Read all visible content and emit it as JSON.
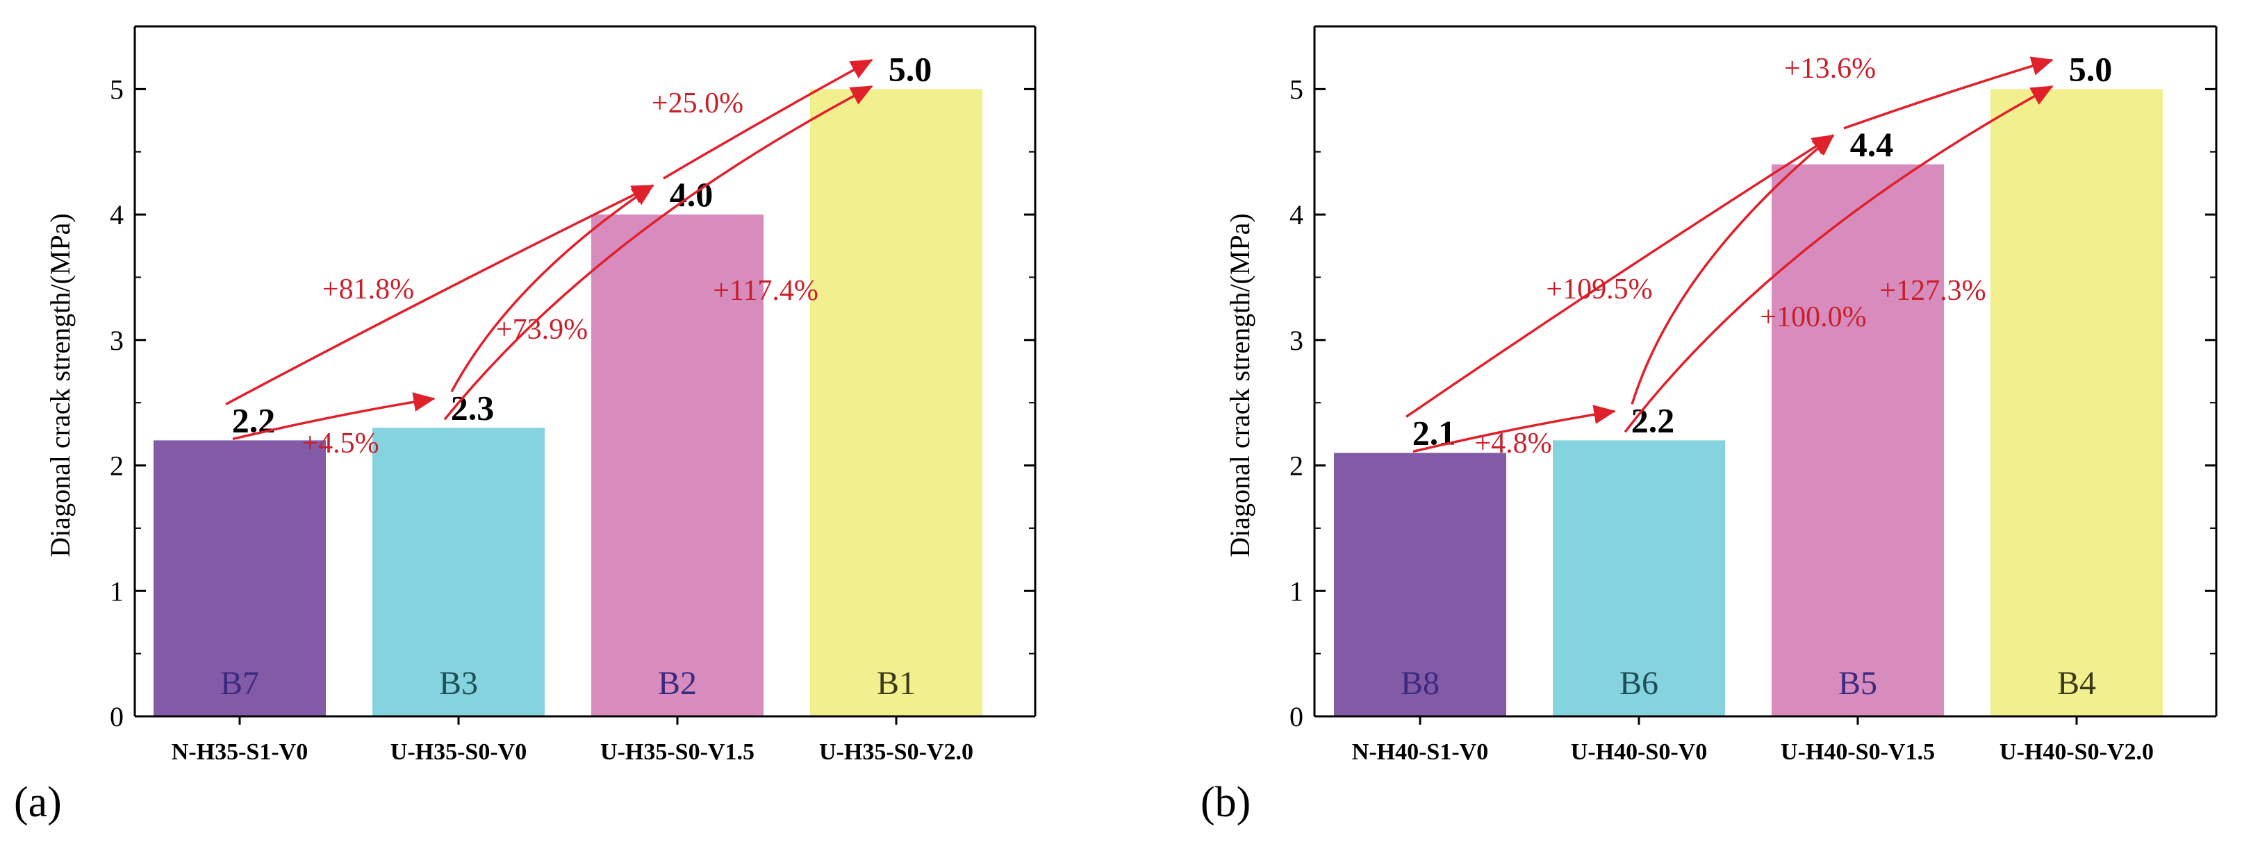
{
  "chart_data": [
    {
      "type": "bar",
      "panel_label": "(a)",
      "ylabel": "Diagonal crack strength/(MPa)",
      "ylim": [
        0,
        5.5
      ],
      "yticks": [
        0,
        1,
        2,
        3,
        4,
        5
      ],
      "categories": [
        "N-H35-S1-V0",
        "U-H35-S0-V0",
        "U-H35-S0-V1.5",
        "U-H35-S0-V2.0"
      ],
      "values": [
        2.2,
        2.3,
        4.0,
        5.0
      ],
      "value_labels": [
        "2.2",
        "2.3",
        "4.0",
        "5.0"
      ],
      "bar_ids": [
        "B7",
        "B3",
        "B2",
        "B1"
      ],
      "colors": [
        "#835aa6",
        "#84d3de",
        "#d78cbd",
        "#f2ef8e"
      ],
      "bar_id_colors": [
        "#3a2a80",
        "#1f4f56",
        "#3a2a80",
        "#3a3a1a"
      ],
      "annotations": [
        {
          "from": 0,
          "to": 1,
          "text": "+4.5%"
        },
        {
          "from": 0,
          "to": 2,
          "text": "+81.8%"
        },
        {
          "from": 1,
          "to": 2,
          "text": "+73.9%"
        },
        {
          "from": 1,
          "to": 3,
          "text": "+117.4%"
        },
        {
          "from": 2,
          "to": 3,
          "text": "+25.0%"
        }
      ]
    },
    {
      "type": "bar",
      "panel_label": "(b)",
      "ylabel": "Diagonal crack strength/(MPa)",
      "ylim": [
        0,
        5.5
      ],
      "yticks": [
        0,
        1,
        2,
        3,
        4,
        5
      ],
      "categories": [
        "N-H40-S1-V0",
        "U-H40-S0-V0",
        "U-H40-S0-V1.5",
        "U-H40-S0-V2.0"
      ],
      "values": [
        2.1,
        2.2,
        4.4,
        5.0
      ],
      "value_labels": [
        "2.1",
        "2.2",
        "4.4",
        "5.0"
      ],
      "bar_ids": [
        "B8",
        "B6",
        "B5",
        "B4"
      ],
      "colors": [
        "#835aa6",
        "#84d3de",
        "#d78cbd",
        "#f2ef8e"
      ],
      "bar_id_colors": [
        "#3a2a80",
        "#1f4f56",
        "#3a2a80",
        "#3a3a1a"
      ],
      "annotations": [
        {
          "from": 0,
          "to": 1,
          "text": "+4.8%"
        },
        {
          "from": 0,
          "to": 2,
          "text": "+109.5%"
        },
        {
          "from": 1,
          "to": 2,
          "text": "+100.0%"
        },
        {
          "from": 1,
          "to": 3,
          "text": "+127.3%"
        },
        {
          "from": 2,
          "to": 3,
          "text": "+13.6%"
        }
      ]
    }
  ],
  "annotation_color": "#e0202a"
}
